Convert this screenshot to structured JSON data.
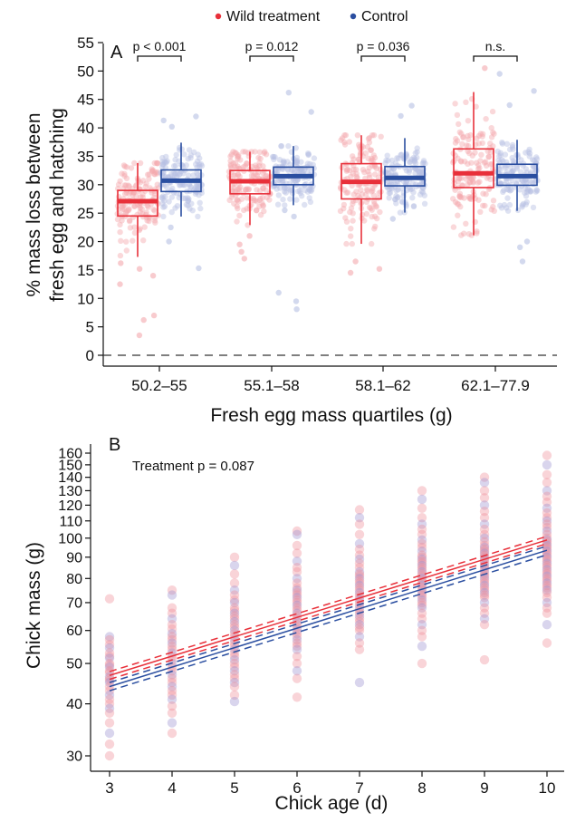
{
  "chart_data": [
    {
      "panel_label": "A",
      "type": "box",
      "legend": {
        "position": "top",
        "items": [
          {
            "label": "Wild treatment",
            "color": "#e8303a"
          },
          {
            "label": "Control",
            "color": "#2a4ea0"
          }
        ]
      },
      "categories": [
        "50.2–55",
        "55.1–58",
        "58.1–62",
        "62.1–77.9"
      ],
      "xlabel": "Fresh egg mass quartiles (g)",
      "ylabel_lines": [
        "% mass loss between",
        "fresh egg and hatching"
      ],
      "ylim": [
        0,
        55
      ],
      "yticks": [
        0,
        5,
        10,
        15,
        20,
        25,
        30,
        35,
        40,
        45,
        50,
        55
      ],
      "reference_line": 0,
      "significance": [
        "p < 0.001",
        "p = 0.012",
        "p = 0.036",
        "n.s."
      ],
      "series": [
        {
          "name": "Wild treatment",
          "color": "#e8303a",
          "boxes": [
            {
              "lower_whisker": 17.3,
              "q1": 24.5,
              "median": 27.1,
              "q3": 29.0,
              "upper_whisker": 33.8,
              "outliers": [
                16.2,
                15.2,
                14.0,
                12.5,
                7.0,
                6.2,
                3.5
              ]
            },
            {
              "lower_whisker": 22.9,
              "q1": 28.4,
              "median": 30.6,
              "q3": 32.5,
              "upper_whisker": 35.8,
              "outliers": [
                21.0,
                19.5,
                18.2,
                17.0
              ]
            },
            {
              "lower_whisker": 19.6,
              "q1": 27.5,
              "median": 30.5,
              "q3": 33.7,
              "upper_whisker": 38.7,
              "outliers": [
                16.5,
                15.2,
                14.5
              ]
            },
            {
              "lower_whisker": 21.1,
              "q1": 29.5,
              "median": 32.0,
              "q3": 36.3,
              "upper_whisker": 46.3,
              "outliers": [
                50.5
              ]
            }
          ]
        },
        {
          "name": "Control",
          "color": "#2a4ea0",
          "boxes": [
            {
              "lower_whisker": 24.4,
              "q1": 28.8,
              "median": 30.7,
              "q3": 32.6,
              "upper_whisker": 37.4,
              "outliers": [
                40.2,
                42.0,
                41.3,
                22.5,
                20.0,
                15.3
              ]
            },
            {
              "lower_whisker": 26.4,
              "q1": 30.0,
              "median": 31.5,
              "q3": 33.1,
              "upper_whisker": 36.8,
              "outliers": [
                46.2,
                42.8,
                25.5,
                24.4,
                11.0,
                9.5,
                8.1
              ]
            },
            {
              "lower_whisker": 25.1,
              "q1": 29.8,
              "median": 31.2,
              "q3": 33.2,
              "upper_whisker": 38.2,
              "outliers": [
                43.9,
                42.1,
                24.0
              ]
            },
            {
              "lower_whisker": 25.4,
              "q1": 29.9,
              "median": 31.5,
              "q3": 33.6,
              "upper_whisker": 37.9,
              "outliers": [
                49.5,
                46.5,
                44.0,
                20.0,
                19.0,
                16.5
              ]
            }
          ]
        }
      ],
      "point_colors": {
        "Wild treatment": "#f4a9ae",
        "Control": "#b5bfe3"
      }
    },
    {
      "panel_label": "B",
      "type": "scatter",
      "annotation": "Treatment p = 0.087",
      "xlabel": "Chick age (d)",
      "ylabel": "Chick mass (g)",
      "x_ticks": [
        3,
        4,
        5,
        6,
        7,
        8,
        9,
        10
      ],
      "y_scale": "log",
      "ylim": [
        27,
        170
      ],
      "y_ticks": [
        30,
        40,
        50,
        60,
        70,
        80,
        90,
        100,
        110,
        120,
        130,
        140,
        150,
        160
      ],
      "point_colors": {
        "Wild treatment": "#f08f98",
        "Control": "#9b91d0"
      },
      "points": [
        {
          "x": 3,
          "y": [
            71.5,
            58,
            57,
            55.5,
            54.5,
            53,
            52,
            51.5,
            50,
            49.5,
            49,
            48,
            47.5,
            46.5,
            46,
            45.5,
            45,
            44,
            43,
            42,
            41,
            40,
            39,
            38,
            36,
            34,
            32,
            30
          ]
        },
        {
          "x": 4,
          "y": [
            75,
            73,
            68,
            66,
            64,
            62,
            60.5,
            59,
            58,
            57,
            56,
            55,
            54,
            53,
            52,
            51,
            50,
            49,
            48,
            47,
            46,
            45,
            44,
            43,
            42,
            41,
            39.5,
            38,
            36,
            34
          ]
        },
        {
          "x": 5,
          "y": [
            90,
            86,
            82,
            78,
            75,
            73,
            71,
            70,
            68,
            67,
            66,
            65,
            64,
            63,
            62,
            61,
            60,
            59,
            58,
            57,
            56,
            55,
            54,
            53,
            52,
            51,
            50,
            49,
            48,
            47,
            46,
            45,
            44,
            42,
            40.5
          ]
        },
        {
          "x": 6,
          "y": [
            104,
            102,
            96,
            92,
            88,
            85,
            83,
            80,
            78,
            76,
            75,
            74,
            73,
            72,
            71,
            70,
            69,
            68,
            67,
            66,
            65,
            64,
            63,
            62,
            61,
            60,
            59,
            58,
            57,
            56,
            55,
            54,
            52,
            50,
            48,
            46,
            41.5
          ]
        },
        {
          "x": 7,
          "y": [
            117,
            112,
            108,
            102,
            97,
            94,
            91,
            89,
            87,
            85,
            83,
            82,
            81,
            80,
            79,
            78,
            77,
            76,
            75,
            74,
            73,
            72,
            71,
            70,
            69,
            68,
            67,
            66,
            65,
            64,
            63,
            62,
            61,
            60,
            58,
            56,
            54,
            45
          ]
        },
        {
          "x": 8,
          "y": [
            130,
            124,
            118,
            112,
            108,
            105,
            102,
            99,
            97,
            95,
            93,
            91,
            90,
            89,
            88,
            87,
            86,
            85,
            84,
            83,
            82,
            81,
            80,
            79,
            78,
            77,
            76,
            75,
            74,
            73,
            72,
            71,
            70,
            69,
            68,
            66,
            64,
            62,
            60,
            58,
            55,
            50
          ]
        },
        {
          "x": 9,
          "y": [
            140,
            136,
            130,
            125,
            120,
            116,
            112,
            108,
            105,
            102,
            100,
            98,
            96,
            95,
            94,
            93,
            92,
            91,
            90,
            89,
            88,
            87,
            86,
            85,
            84,
            83,
            82,
            81,
            80,
            79,
            78,
            77,
            76,
            75,
            74,
            73,
            72,
            70,
            68,
            66,
            64,
            62,
            51
          ]
        },
        {
          "x": 10,
          "y": [
            158,
            150,
            142,
            136,
            130,
            126,
            122,
            118,
            115,
            112,
            110,
            108,
            106,
            104,
            102,
            100,
            99,
            98,
            97,
            96,
            95,
            94,
            93,
            92,
            91,
            90,
            89,
            88,
            87,
            86,
            85,
            84,
            83,
            82,
            81,
            80,
            79,
            78,
            77,
            76,
            75,
            74,
            72,
            70,
            68,
            66,
            62,
            56
          ]
        }
      ],
      "series": [
        {
          "name": "Wild treatment",
          "color": "#e8303a",
          "fit": [
            [
              3,
              46.8
            ],
            [
              10,
              99.0
            ]
          ],
          "ci_upper": [
            [
              3,
              47.8
            ],
            [
              10,
              101.0
            ]
          ],
          "ci_lower": [
            [
              3,
              45.8
            ],
            [
              10,
              97.0
            ]
          ]
        },
        {
          "name": "Control",
          "color": "#2a4ea0",
          "fit": [
            [
              3,
              44.0
            ],
            [
              10,
              93.5
            ]
          ],
          "ci_upper": [
            [
              3,
              45.0
            ],
            [
              10,
              95.7
            ]
          ],
          "ci_lower": [
            [
              3,
              43.0
            ],
            [
              10,
              91.2
            ]
          ]
        }
      ]
    }
  ]
}
